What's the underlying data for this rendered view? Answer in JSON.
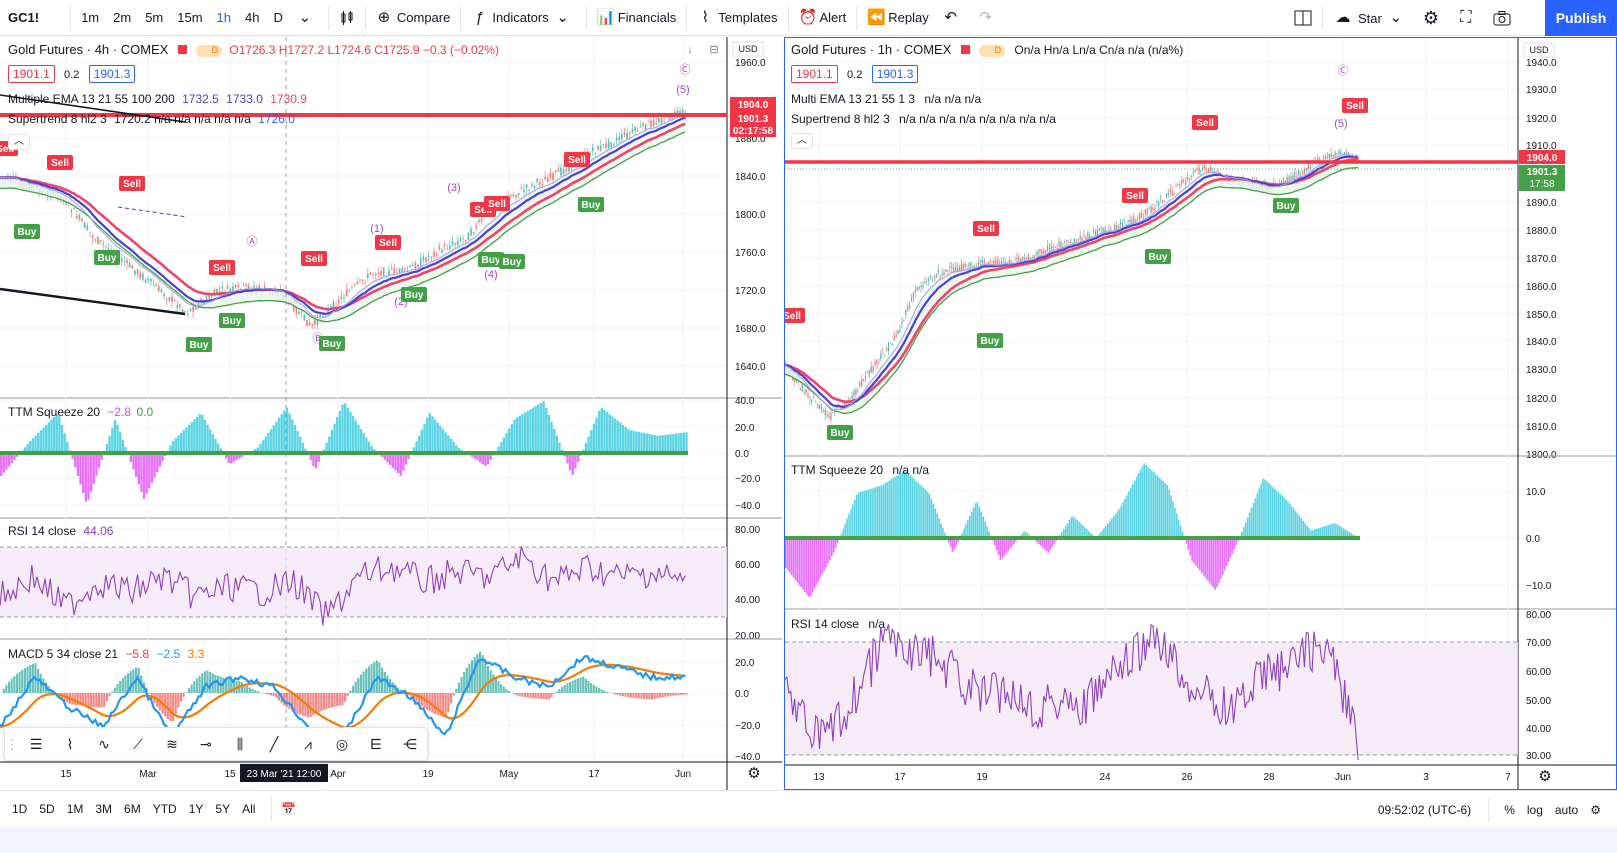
{
  "toolbar": {
    "symbol": "GC1!",
    "intervals": [
      "1m",
      "2m",
      "5m",
      "15m",
      "1h",
      "4h",
      "D"
    ],
    "active_interval": "1h",
    "compare": "Compare",
    "indicators": "Indicators",
    "financials": "Financials",
    "templates": "Templates",
    "alert": "Alert",
    "replay": "Replay",
    "star": "Star",
    "publish": "Publish"
  },
  "left_chart": {
    "title": "Gold Futures · 4h · COMEX",
    "ohlc": "O1726.3 H1727.2 L1724.6 C1725.9 −0.3 (−0.02%)",
    "bid": "1901.1",
    "spread": "0.2",
    "ask": "1901.3",
    "ema_legend": "Multiple EMA 13 21 55 100 200",
    "ema_values": [
      "1732.5",
      "1733.0",
      "1730.9"
    ],
    "supertrend_legend": "Supertrend 8 hl2 3",
    "supertrend_values": "1720.2  n/a  n/a  n/a  n/a  n/a",
    "supertrend_last": "1726.0",
    "currency": "USD",
    "price_ticks": [
      "1960.0",
      "1880.0",
      "1840.0",
      "1800.0",
      "1760.0",
      "1720.0",
      "1680.0",
      "1640.0"
    ],
    "price_tag_red": "1904.0",
    "price_tag_last": "1901.3",
    "price_tag_timer": "02:17:58",
    "ttm_legend": "TTM Squeeze 20",
    "ttm_values": [
      "−2.8",
      "0.0"
    ],
    "ttm_ticks": [
      "40.0",
      "20.0",
      "0.0",
      "−20.0",
      "−40.0"
    ],
    "rsi_legend": "RSI 14 close",
    "rsi_value": "44.06",
    "rsi_ticks": [
      "80.00",
      "60.00",
      "40.00",
      "20.00"
    ],
    "macd_legend": "MACD 5 34 close 21",
    "macd_values": [
      "−5.8",
      "−2.5",
      "3.3"
    ],
    "macd_ticks": [
      "20.0",
      "0.0",
      "−20.0",
      "−40.0"
    ],
    "time_ticks": [
      "15",
      "Mar",
      "15",
      "Apr",
      "19",
      "May",
      "17",
      "Jun"
    ],
    "crosshair_label": "23 Mar '21   12:00",
    "wave_labels": [
      "Ⓐ",
      "Ⓑ",
      "(1)",
      "(2)",
      "(3)",
      "(4)",
      "(5)",
      "Ⓒ"
    ],
    "signals": [
      "Sell",
      "Sell",
      "Sell",
      "Sell",
      "Sell",
      "Sell",
      "Sell",
      "Sell",
      "Sell",
      "Buy",
      "Buy",
      "Buy",
      "Buy",
      "Buy",
      "Buy",
      "Buy",
      "Buy",
      "Buy"
    ]
  },
  "right_chart": {
    "title": "Gold Futures · 1h · COMEX",
    "ohlc": "On/a Hn/a Ln/a Cn/a n/a (n/a%)",
    "bid": "1901.1",
    "spread": "0.2",
    "ask": "1901.3",
    "ema_legend": "Multi EMA 13 21 55 1 3",
    "ema_values": "n/a  n/a  n/a",
    "supertrend_legend": "Supertrend 8 hl2 3",
    "supertrend_values": "n/a  n/a  n/a  n/a  n/a  n/a  n/a  n/a",
    "currency": "USD",
    "price_ticks": [
      "1940.0",
      "1930.0",
      "1920.0",
      "1910.0",
      "1890.0",
      "1880.0",
      "1870.0",
      "1860.0",
      "1850.0",
      "1840.0",
      "1830.0",
      "1820.0",
      "1810.0",
      "1800.0"
    ],
    "price_tag_red": "1904.0",
    "price_tag_last": "1901.3",
    "price_tag_timer": "17:58",
    "ttm_legend": "TTM Squeeze 20",
    "ttm_values": "n/a  n/a",
    "ttm_ticks": [
      "10.0",
      "0.0",
      "−10.0"
    ],
    "rsi_legend": "RSI 14 close",
    "rsi_value": "n/a",
    "rsi_ticks": [
      "80.00",
      "70.00",
      "60.00",
      "50.00",
      "40.00",
      "30.00"
    ],
    "time_ticks": [
      "13",
      "17",
      "19",
      "24",
      "26",
      "28",
      "Jun",
      "3",
      "7"
    ],
    "wave_labels": [
      "Ⓒ",
      "(5)"
    ],
    "signals": [
      "Sell",
      "Sell",
      "Sell",
      "Sell",
      "Sell",
      "Buy",
      "Buy",
      "Buy",
      "Buy"
    ]
  },
  "bottom_bar": {
    "ranges": [
      "1D",
      "5D",
      "1M",
      "3M",
      "6M",
      "YTD",
      "1Y",
      "5Y",
      "All"
    ],
    "time": "09:52:02 (UTC-6)",
    "percent": "%",
    "log": "log",
    "auto": "auto"
  },
  "colors": {
    "accent": "#2962ff",
    "sell": "#f23645",
    "buy": "#43a047",
    "ema_fast": "#4a3fd6",
    "ema_slow": "#f0436b",
    "rsi": "#8e3fbf",
    "macd": "#2196f3",
    "signal": "#f57c00"
  }
}
